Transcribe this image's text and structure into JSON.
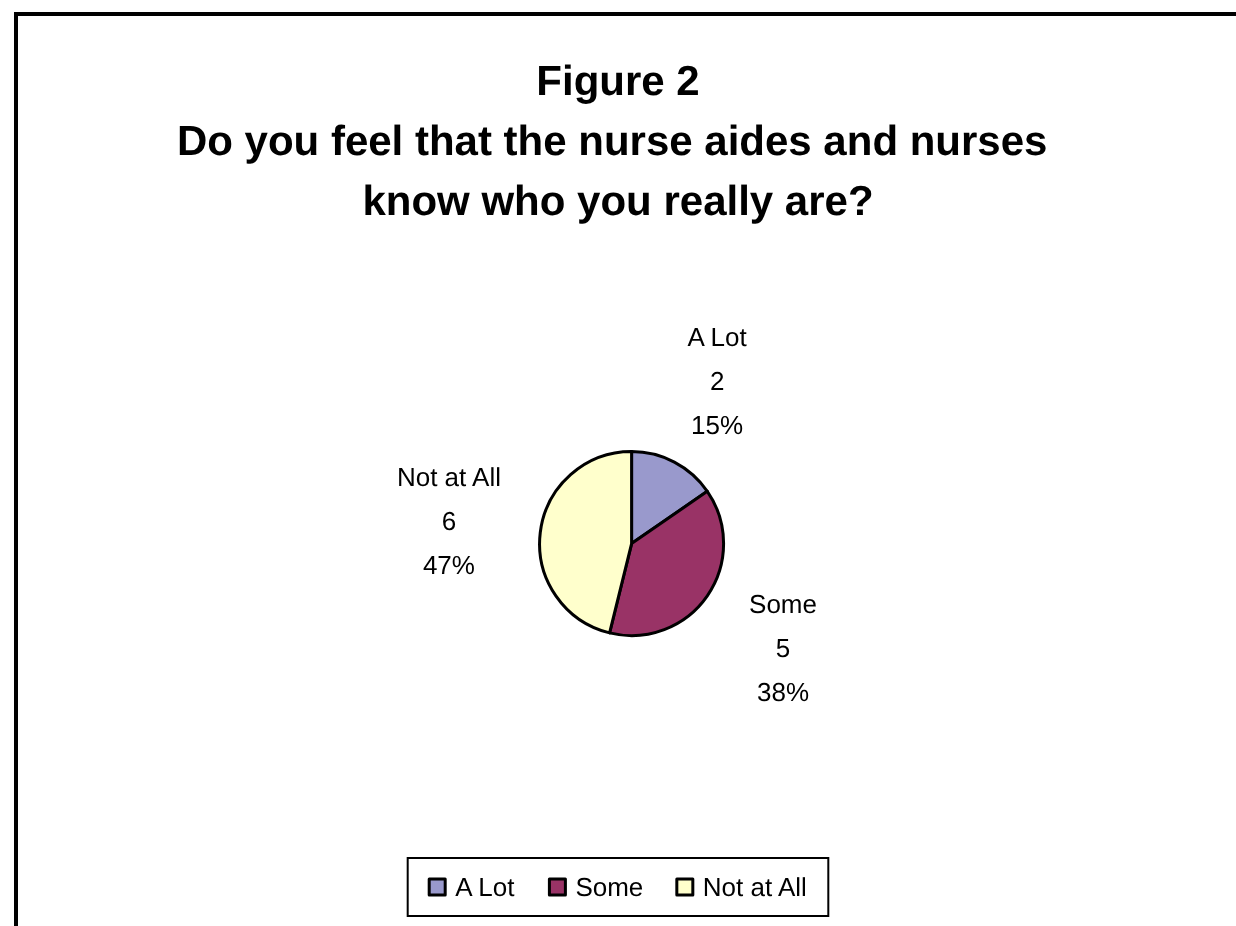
{
  "chart_data": {
    "type": "pie",
    "title": "Figure 2",
    "subtitle": "Do you feel that the nurse aides and nurses know who you really are?",
    "categories": [
      "A Lot",
      "Some",
      "Not at All"
    ],
    "values": [
      2,
      5,
      6
    ],
    "colors": [
      "#9999cc",
      "#993366",
      "#ffffcc"
    ],
    "value_labels": [
      "2\n15%",
      "5\n38%",
      "6\n47%"
    ],
    "legend": "bottom"
  }
}
